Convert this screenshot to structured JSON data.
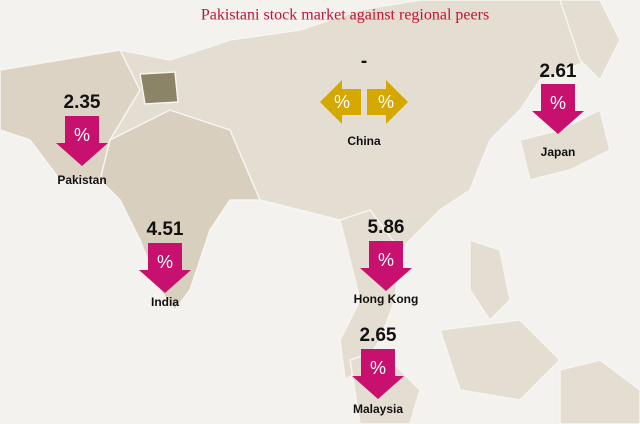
{
  "title": "Pakistani stock market against regional peers",
  "unit_symbol": "%",
  "markets": [
    {
      "name": "Pakistan",
      "value": 2.35,
      "direction": "down"
    },
    {
      "name": "China",
      "value": "-",
      "direction": "flat"
    },
    {
      "name": "Japan",
      "value": 2.61,
      "direction": "down"
    },
    {
      "name": "India",
      "value": 4.51,
      "direction": "down"
    },
    {
      "name": "Hong Kong",
      "value": 5.86,
      "direction": "down"
    },
    {
      "name": "Malaysia",
      "value": 2.65,
      "direction": "down"
    }
  ]
}
